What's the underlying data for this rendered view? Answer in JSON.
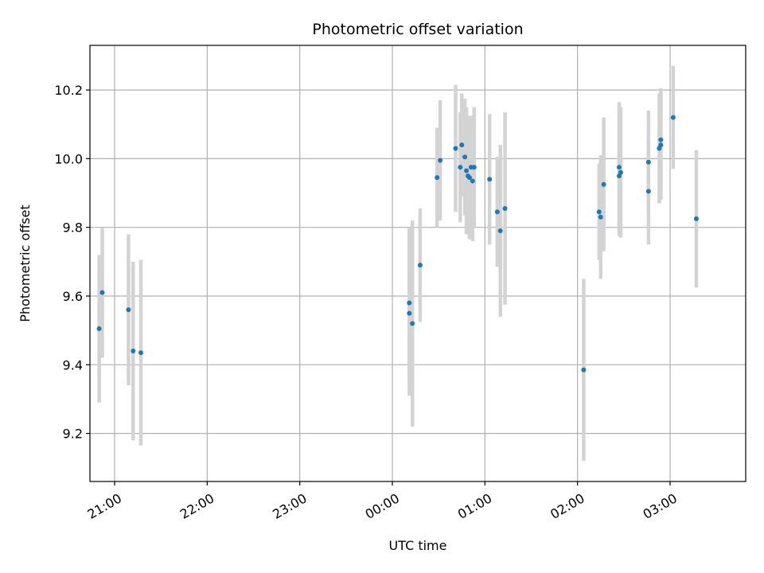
{
  "chart_data": {
    "type": "scatter",
    "title": "Photometric offset variation",
    "xlabel": "UTC time",
    "ylabel": "Photometric offset",
    "xlim": [
      "20:44",
      "03:49"
    ],
    "ylim": [
      9.06,
      10.33
    ],
    "x_ticks": [
      "21:00",
      "22:00",
      "23:00",
      "00:00",
      "01:00",
      "02:00",
      "03:00"
    ],
    "y_ticks": [
      9.2,
      9.4,
      9.6,
      9.8,
      10.0,
      10.2
    ],
    "grid": true,
    "colors": {
      "marker": "#1f77b4",
      "errorbar": "#d3d3d3"
    },
    "series": [
      {
        "points": [
          {
            "x": "20:50",
            "y": 9.505,
            "yerr": 0.215
          },
          {
            "x": "20:52",
            "y": 9.61,
            "yerr": 0.19
          },
          {
            "x": "21:09",
            "y": 9.56,
            "yerr": 0.22
          },
          {
            "x": "21:12",
            "y": 9.44,
            "yerr": 0.26
          },
          {
            "x": "21:17",
            "y": 9.435,
            "yerr": 0.27
          },
          {
            "x": "00:11",
            "y": 9.55,
            "yerr": 0.24
          },
          {
            "x": "00:11",
            "y": 9.58,
            "yerr": 0.22
          },
          {
            "x": "00:13",
            "y": 9.52,
            "yerr": 0.3
          },
          {
            "x": "00:18",
            "y": 9.69,
            "yerr": 0.165
          },
          {
            "x": "00:29",
            "y": 9.945,
            "yerr": 0.145
          },
          {
            "x": "00:31",
            "y": 9.995,
            "yerr": 0.175
          },
          {
            "x": "00:41",
            "y": 10.03,
            "yerr": 0.185
          },
          {
            "x": "00:44",
            "y": 9.975,
            "yerr": 0.16
          },
          {
            "x": "00:45",
            "y": 10.04,
            "yerr": 0.15
          },
          {
            "x": "00:47",
            "y": 10.005,
            "yerr": 0.17
          },
          {
            "x": "00:48",
            "y": 9.965,
            "yerr": 0.185
          },
          {
            "x": "00:49",
            "y": 9.95,
            "yerr": 0.17
          },
          {
            "x": "00:50",
            "y": 9.945,
            "yerr": 0.18
          },
          {
            "x": "00:51",
            "y": 9.975,
            "yerr": 0.15
          },
          {
            "x": "00:52",
            "y": 9.935,
            "yerr": 0.175
          },
          {
            "x": "00:53",
            "y": 9.975,
            "yerr": 0.175
          },
          {
            "x": "01:03",
            "y": 9.94,
            "yerr": 0.19
          },
          {
            "x": "01:08",
            "y": 9.845,
            "yerr": 0.16
          },
          {
            "x": "01:10",
            "y": 9.79,
            "yerr": 0.25
          },
          {
            "x": "01:13",
            "y": 9.855,
            "yerr": 0.28
          },
          {
            "x": "02:04",
            "y": 9.385,
            "yerr": 0.265
          },
          {
            "x": "02:14",
            "y": 9.845,
            "yerr": 0.14
          },
          {
            "x": "02:15",
            "y": 9.83,
            "yerr": 0.18
          },
          {
            "x": "02:17",
            "y": 9.925,
            "yerr": 0.195
          },
          {
            "x": "02:27",
            "y": 9.975,
            "yerr": 0.19
          },
          {
            "x": "02:27",
            "y": 9.95,
            "yerr": 0.175
          },
          {
            "x": "02:28",
            "y": 9.96,
            "yerr": 0.19
          },
          {
            "x": "02:46",
            "y": 9.905,
            "yerr": 0.155
          },
          {
            "x": "02:46",
            "y": 9.99,
            "yerr": 0.15
          },
          {
            "x": "02:53",
            "y": 10.03,
            "yerr": 0.16
          },
          {
            "x": "02:54",
            "y": 10.04,
            "yerr": 0.16
          },
          {
            "x": "02:54",
            "y": 10.055,
            "yerr": 0.15
          },
          {
            "x": "03:02",
            "y": 10.12,
            "yerr": 0.15
          },
          {
            "x": "03:17",
            "y": 9.825,
            "yerr": 0.2
          }
        ]
      }
    ]
  }
}
